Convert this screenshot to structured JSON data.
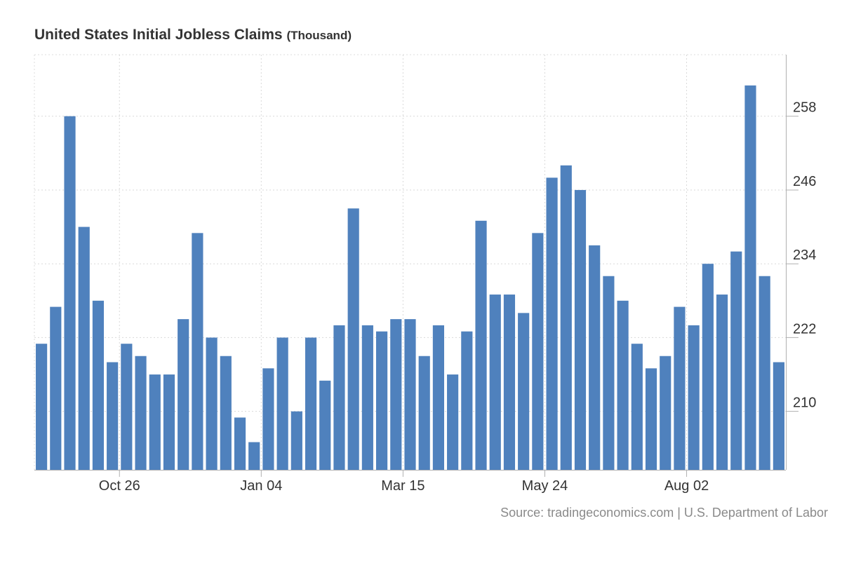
{
  "chart_data": {
    "type": "bar",
    "title": "United States Initial Jobless Claims",
    "unit": "(Thousand)",
    "source": "Source: tradingeconomics.com | U.S. Department of Labor",
    "bar_color": "#4f81bd",
    "grid": true,
    "ylim": [
      200.5,
      268
    ],
    "y_ticks": [
      210,
      222,
      234,
      246,
      258
    ],
    "x_tick_labels": [
      {
        "label": "Oct 26",
        "index": 5.5
      },
      {
        "label": "Jan 04",
        "index": 15.5
      },
      {
        "label": "Mar 15",
        "index": 25.5
      },
      {
        "label": "May 24",
        "index": 35.5
      },
      {
        "label": "Aug 02",
        "index": 45.5
      }
    ],
    "values": [
      221,
      227,
      258,
      240,
      228,
      218,
      221,
      219,
      216,
      216,
      225,
      239,
      222,
      219,
      209,
      205,
      217,
      222,
      210,
      222,
      215,
      224,
      243,
      224,
      223,
      225,
      225,
      219,
      224,
      216,
      223,
      241,
      229,
      229,
      226,
      239,
      248,
      250,
      246,
      237,
      232,
      228,
      221,
      217,
      219,
      227,
      224,
      234,
      229,
      236,
      263,
      232,
      218
    ]
  }
}
